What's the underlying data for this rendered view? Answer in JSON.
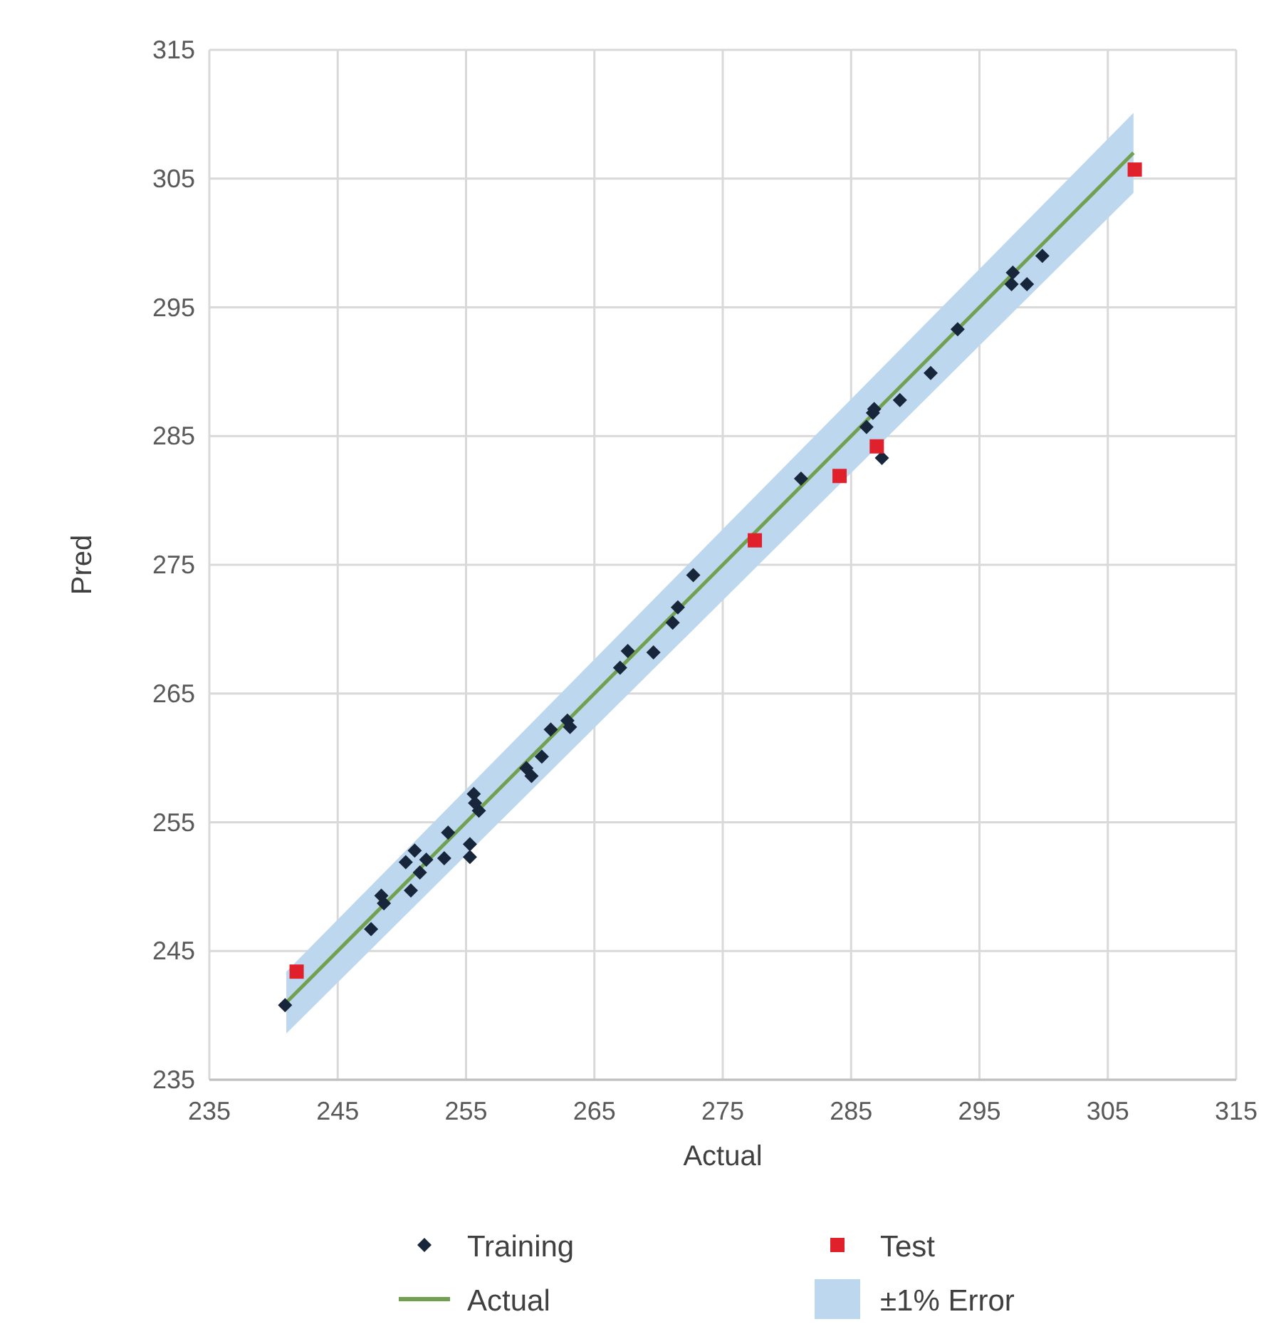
{
  "chart_data": {
    "type": "scatter",
    "xlabel": "Actual",
    "ylabel": "Pred",
    "xlim": [
      235,
      315
    ],
    "ylim": [
      235,
      315
    ],
    "xticks": [
      235,
      245,
      255,
      265,
      275,
      285,
      295,
      305,
      315
    ],
    "yticks": [
      235,
      245,
      255,
      265,
      275,
      285,
      295,
      305,
      315
    ],
    "grid": true,
    "legend": "bottom",
    "annotations": [
      "±1% Error"
    ],
    "series": [
      {
        "name": "Actual",
        "type": "line",
        "color": "#70a050",
        "x": [
          241,
          307
        ],
        "values": [
          241,
          307
        ],
        "lower": [
          238.6,
          303.9
        ],
        "upper": [
          243.4,
          310.1
        ]
      },
      {
        "name": "Training",
        "color": "#17263a",
        "marker": "diamond",
        "x": [
          240.9,
          247.6,
          248.4,
          248.6,
          250.7,
          250.3,
          251.0,
          251.4,
          251.9,
          253.3,
          253.6,
          255.3,
          255.3,
          255.6,
          256.0,
          255.7,
          259.7,
          260.1,
          260.9,
          261.6,
          262.9,
          263.1,
          267.0,
          267.6,
          269.6,
          271.1,
          271.5,
          272.7,
          281.1,
          286.2,
          286.7,
          286.8,
          287.4,
          288.8,
          291.2,
          293.3,
          297.6,
          297.5,
          298.7,
          299.9
        ],
        "values": [
          240.8,
          246.7,
          249.3,
          248.7,
          249.7,
          251.9,
          252.8,
          251.1,
          252.1,
          252.2,
          254.2,
          253.3,
          252.3,
          257.2,
          255.9,
          256.5,
          259.2,
          258.6,
          260.1,
          262.2,
          262.9,
          262.4,
          267.0,
          268.3,
          268.2,
          270.5,
          271.7,
          274.2,
          281.7,
          285.7,
          286.8,
          287.1,
          283.3,
          287.8,
          289.9,
          293.3,
          297.7,
          296.8,
          296.8,
          299.0
        ]
      },
      {
        "name": "Test",
        "color": "#e0202a",
        "marker": "square",
        "x": [
          241.8,
          277.5,
          284.1,
          287.0,
          307.1
        ],
        "values": [
          243.4,
          276.9,
          281.9,
          284.2,
          305.7
        ]
      }
    ]
  }
}
